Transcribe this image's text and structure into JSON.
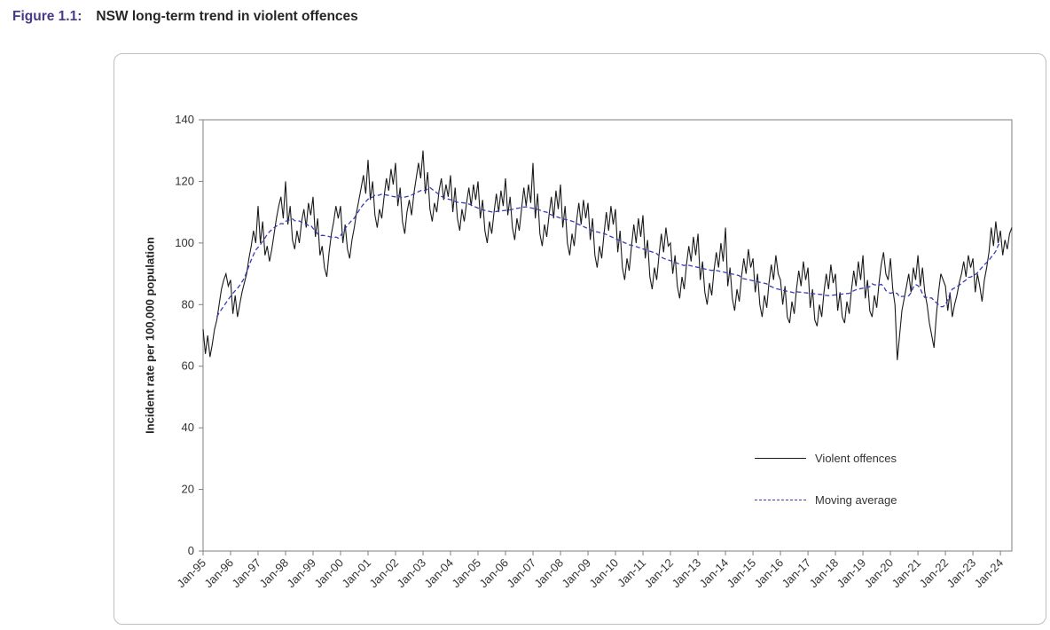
{
  "header": {
    "figure_label": "Figure 1.1:",
    "title": "NSW long-term trend in violent offences"
  },
  "colors": {
    "figure_label": "#463a8a",
    "title_text": "#262626",
    "violent_offences_line": "#1a1a1a",
    "moving_average_line": "#3b3bb8",
    "axis_text": "#333333",
    "plot_border": "#7f7f7f",
    "outer_border": "#bfbfbf"
  },
  "chart_data": {
    "type": "line",
    "title": "NSW long-term trend in violent offences",
    "ylabel": "Incident rate per 100,000 population",
    "xlabel": "",
    "ylim": [
      0,
      140
    ],
    "y_ticks": [
      0,
      20,
      40,
      60,
      80,
      100,
      120,
      140
    ],
    "grid": false,
    "legend_position": "inside-right",
    "x_unit": "month",
    "x_start": "Jan-95",
    "x_end": "Jun-24",
    "points_per_year": 12,
    "x_tick_labels": [
      "Jan-95",
      "Jan-96",
      "Jan-97",
      "Jan-98",
      "Jan-99",
      "Jan-00",
      "Jan-01",
      "Jan-02",
      "Jan-03",
      "Jan-04",
      "Jan-05",
      "Jan-06",
      "Jan-07",
      "Jan-08",
      "Jan-09",
      "Jan-10",
      "Jan-11",
      "Jan-12",
      "Jan-13",
      "Jan-14",
      "Jan-15",
      "Jan-16",
      "Jan-17",
      "Jan-18",
      "Jan-19",
      "Jan-20",
      "Jan-21",
      "Jan-22",
      "Jan-23",
      "Jan-24"
    ],
    "series": [
      {
        "name": "Violent offences",
        "style": "solid",
        "color": "#1a1a1a",
        "values": [
          72,
          64,
          70,
          63,
          67,
          72,
          75,
          80,
          85,
          88,
          90,
          86,
          88,
          77,
          83,
          76,
          80,
          84,
          87,
          90,
          95,
          99,
          104,
          100,
          112,
          100,
          107,
          96,
          99,
          94,
          98,
          103,
          108,
          112,
          115,
          108,
          120,
          106,
          112,
          101,
          98,
          104,
          100,
          107,
          111,
          105,
          113,
          109,
          115,
          102,
          108,
          96,
          99,
          92,
          89,
          97,
          103,
          107,
          112,
          108,
          112,
          100,
          106,
          98,
          95,
          101,
          105,
          110,
          114,
          118,
          122,
          116,
          127,
          114,
          120,
          109,
          105,
          111,
          108,
          115,
          121,
          117,
          124,
          119,
          126,
          112,
          118,
          107,
          103,
          110,
          114,
          109,
          116,
          121,
          126,
          121,
          130,
          116,
          123,
          111,
          107,
          113,
          110,
          117,
          121,
          114,
          119,
          115,
          122,
          110,
          118,
          108,
          104,
          111,
          107,
          113,
          118,
          112,
          119,
          114,
          120,
          108,
          114,
          104,
          100,
          107,
          103,
          110,
          116,
          110,
          117,
          112,
          121,
          109,
          115,
          105,
          101,
          108,
          104,
          111,
          118,
          112,
          119,
          113,
          126,
          108,
          116,
          103,
          99,
          106,
          102,
          109,
          115,
          108,
          117,
          111,
          119,
          105,
          112,
          100,
          96,
          103,
          99,
          107,
          113,
          106,
          114,
          108,
          113,
          101,
          108,
          96,
          92,
          99,
          95,
          103,
          110,
          104,
          112,
          106,
          111,
          97,
          104,
          92,
          88,
          95,
          91,
          99,
          106,
          100,
          108,
          102,
          109,
          95,
          101,
          89,
          85,
          92,
          88,
          96,
          103,
          97,
          105,
          99,
          100,
          90,
          96,
          86,
          82,
          89,
          85,
          93,
          99,
          94,
          102,
          96,
          103,
          88,
          94,
          84,
          80,
          87,
          83,
          91,
          97,
          92,
          100,
          94,
          105,
          86,
          92,
          82,
          78,
          85,
          81,
          89,
          95,
          90,
          98,
          92,
          95,
          84,
          90,
          80,
          76,
          83,
          79,
          87,
          93,
          88,
          96,
          90,
          88,
          80,
          86,
          76,
          74,
          81,
          77,
          85,
          91,
          86,
          94,
          88,
          92,
          79,
          85,
          75,
          73,
          80,
          76,
          84,
          90,
          85,
          93,
          87,
          90,
          78,
          84,
          76,
          74,
          81,
          77,
          85,
          91,
          86,
          94,
          88,
          96,
          82,
          88,
          78,
          76,
          83,
          79,
          87,
          93,
          97,
          90,
          88,
          95,
          85,
          80,
          62,
          70,
          78,
          82,
          86,
          90,
          84,
          92,
          88,
          96,
          86,
          92,
          84,
          80,
          74,
          70,
          66,
          76,
          84,
          90,
          88,
          86,
          78,
          84,
          76,
          80,
          83,
          87,
          90,
          94,
          89,
          96,
          92,
          95,
          84,
          90,
          86,
          81,
          88,
          92,
          97,
          105,
          99,
          107,
          100,
          104,
          96,
          101,
          98,
          103,
          105
        ]
      },
      {
        "name": "Moving average",
        "style": "dashed",
        "color": "#3b3bb8",
        "derived": "centered 12-month moving average of Violent offences",
        "window": 12
      }
    ]
  }
}
